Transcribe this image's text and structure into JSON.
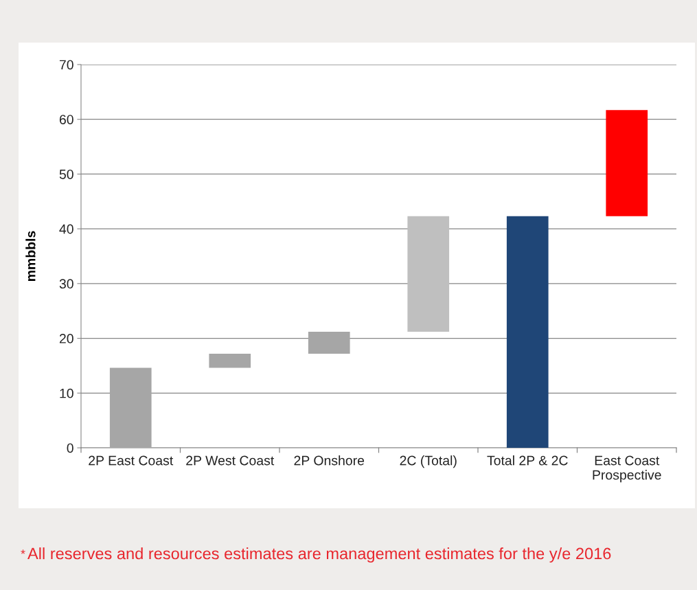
{
  "chart_data": {
    "type": "bar",
    "ylabel": "mmbbls",
    "categories": [
      "2P East Coast",
      "2P West Coast",
      "2P Onshore",
      "2C (Total)",
      "Total 2P & 2C",
      "East Coast\nProspective"
    ],
    "values": [
      14.6,
      2.6,
      4.0,
      21.1,
      42.3,
      19.4
    ],
    "base": [
      0,
      14.6,
      17.2,
      21.2,
      0,
      42.3
    ],
    "colors": [
      "#a6a6a6",
      "#a6a6a6",
      "#a6a6a6",
      "#bfbfbf",
      "#1f4677",
      "#ff0000"
    ],
    "ylim": [
      0,
      70
    ],
    "yticks": [
      0,
      10,
      20,
      30,
      40,
      50,
      60,
      70
    ],
    "grid": "y",
    "legend": false,
    "annotations": [
      "*",
      "All reserves and resources estimates are management estimates for the y/e 2016"
    ]
  }
}
